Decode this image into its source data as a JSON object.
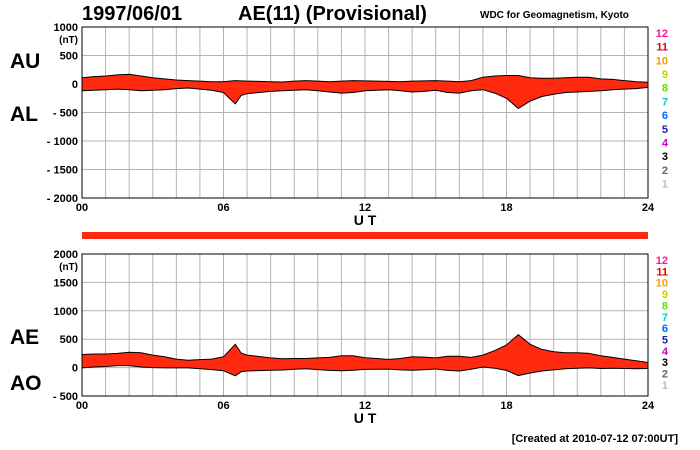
{
  "header": {
    "date": "1997/06/01",
    "title": "AE(11) (Provisional)",
    "source": "WDC for Geomagnetism, Kyoto"
  },
  "footer": {
    "created": "[Created at 2010-07-12 07:00UT]"
  },
  "station_numbers": [
    "12",
    "11",
    "10",
    "9",
    "8",
    "7",
    "6",
    "5",
    "4",
    "3",
    "2",
    "1"
  ],
  "station_colors": [
    "#ff1493",
    "#e00000",
    "#ff9900",
    "#cccc00",
    "#66dd00",
    "#00cccc",
    "#0066ff",
    "#2222aa",
    "#cc00cc",
    "#000000",
    "#666666",
    "#bbbbbb"
  ],
  "fill_color": "#ff2a10",
  "chart_data": [
    {
      "type": "area",
      "panel": "AU / AL",
      "labels_left": [
        "AU",
        "AL"
      ],
      "unit": "(nT)",
      "xlabel": "U T",
      "xlim": [
        0,
        24
      ],
      "xticks": [
        "00",
        "06",
        "12",
        "18",
        "24"
      ],
      "ylim": [
        -2000,
        1000
      ],
      "yticks": [
        1000,
        500,
        0,
        -500,
        -1000,
        -1500,
        -2000
      ],
      "ytick_labels": [
        "1000",
        "500",
        "0",
        "- 500",
        "- 1000",
        "- 1500",
        "- 2000"
      ],
      "grid": true,
      "x": [
        0,
        0.5,
        1,
        1.5,
        2,
        2.5,
        3,
        3.5,
        4,
        4.5,
        5,
        5.5,
        6,
        6.25,
        6.5,
        6.75,
        7,
        7.5,
        8,
        8.5,
        9,
        9.5,
        10,
        10.5,
        11,
        11.5,
        12,
        12.5,
        13,
        13.5,
        14,
        14.5,
        15,
        15.5,
        16,
        16.5,
        17,
        17.5,
        18,
        18.5,
        19,
        19.5,
        20,
        20.5,
        21,
        21.5,
        22,
        22.5,
        23,
        23.5,
        24
      ],
      "series": [
        {
          "name": "AU",
          "values": [
            110,
            130,
            140,
            160,
            170,
            140,
            110,
            90,
            70,
            60,
            50,
            40,
            40,
            50,
            60,
            55,
            50,
            45,
            40,
            35,
            50,
            60,
            50,
            40,
            50,
            60,
            55,
            50,
            45,
            40,
            50,
            55,
            60,
            50,
            40,
            60,
            120,
            140,
            150,
            150,
            110,
            100,
            100,
            110,
            120,
            120,
            90,
            80,
            60,
            40,
            30
          ]
        },
        {
          "name": "AL",
          "values": [
            -120,
            -110,
            -100,
            -90,
            -100,
            -120,
            -110,
            -100,
            -80,
            -70,
            -90,
            -110,
            -150,
            -250,
            -350,
            -200,
            -170,
            -150,
            -130,
            -120,
            -110,
            -100,
            -120,
            -140,
            -160,
            -150,
            -120,
            -110,
            -100,
            -120,
            -140,
            -130,
            -110,
            -150,
            -160,
            -120,
            -100,
            -160,
            -250,
            -430,
            -300,
            -220,
            -180,
            -150,
            -140,
            -130,
            -120,
            -100,
            -90,
            -80,
            -60
          ]
        }
      ]
    },
    {
      "type": "area",
      "panel": "AE / AO",
      "labels_left": [
        "AE",
        "AO"
      ],
      "unit": "(nT)",
      "xlabel": "U T",
      "xlim": [
        0,
        24
      ],
      "xticks": [
        "00",
        "06",
        "12",
        "18",
        "24"
      ],
      "ylim": [
        -500,
        2000
      ],
      "yticks": [
        2000,
        1500,
        1000,
        500,
        0,
        -500
      ],
      "ytick_labels": [
        "2000",
        "1500",
        "1000",
        "500",
        "0",
        "- 500"
      ],
      "grid": true,
      "x": [
        0,
        0.5,
        1,
        1.5,
        2,
        2.5,
        3,
        3.5,
        4,
        4.5,
        5,
        5.5,
        6,
        6.25,
        6.5,
        6.75,
        7,
        7.5,
        8,
        8.5,
        9,
        9.5,
        10,
        10.5,
        11,
        11.5,
        12,
        12.5,
        13,
        13.5,
        14,
        14.5,
        15,
        15.5,
        16,
        16.5,
        17,
        17.5,
        18,
        18.5,
        19,
        19.5,
        20,
        20.5,
        21,
        21.5,
        22,
        22.5,
        23,
        23.5,
        24
      ],
      "series": [
        {
          "name": "AE",
          "values": [
            230,
            240,
            240,
            250,
            270,
            260,
            220,
            190,
            150,
            130,
            140,
            150,
            190,
            300,
            410,
            255,
            220,
            195,
            170,
            155,
            160,
            160,
            170,
            180,
            210,
            210,
            175,
            160,
            145,
            160,
            190,
            185,
            170,
            200,
            200,
            180,
            220,
            300,
            400,
            580,
            410,
            320,
            280,
            260,
            260,
            250,
            210,
            180,
            150,
            120,
            90
          ]
        },
        {
          "name": "AO",
          "values": [
            -5,
            10,
            20,
            35,
            35,
            10,
            0,
            -5,
            -5,
            -5,
            -20,
            -35,
            -55,
            -100,
            -145,
            -72,
            -60,
            -52,
            -45,
            -42,
            -30,
            -20,
            -35,
            -50,
            -55,
            -45,
            -32,
            -30,
            -27,
            -40,
            -45,
            -37,
            -25,
            -50,
            -60,
            -30,
            10,
            -10,
            -50,
            -140,
            -95,
            -60,
            -40,
            -20,
            -10,
            -5,
            -15,
            -10,
            -15,
            -20,
            -15
          ]
        }
      ]
    }
  ]
}
